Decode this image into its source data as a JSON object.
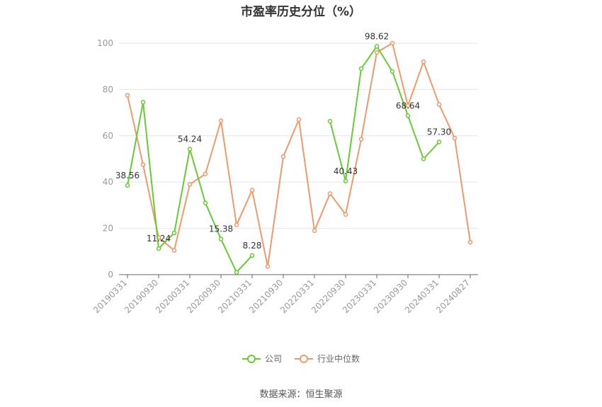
{
  "title": "市盈率历史分位（%）",
  "source": "数据来源：恒生聚源",
  "colors": {
    "company": "#66cc33",
    "industry": "#f0996b",
    "axis": "#999999",
    "grid": "#e6e6e6"
  },
  "chart_data": {
    "type": "line",
    "x": [
      "20190331",
      "20190630",
      "20190930",
      "20191231",
      "20200331",
      "20200630",
      "20200930",
      "20201231",
      "20210331",
      "20210630",
      "20210930",
      "20211231",
      "20220331",
      "20220630",
      "20220930",
      "20221231",
      "20230331",
      "20230630",
      "20230930",
      "20231231",
      "20240331",
      "20240630",
      "20240827"
    ],
    "x_tick_labels": [
      "20190331",
      "20190930",
      "20200331",
      "20200930",
      "20210331",
      "20210930",
      "20220331",
      "20220930",
      "20230331",
      "20230930",
      "20240331",
      "20240827"
    ],
    "ylim": [
      0,
      100
    ],
    "y_ticks": [
      0,
      20,
      40,
      60,
      80,
      100
    ],
    "legend_position": "bottom",
    "grid": true,
    "series": [
      {
        "name": "公司",
        "values": [
          38.56,
          74.5,
          11.24,
          18.0,
          54.24,
          31.0,
          15.38,
          1.0,
          8.28,
          null,
          null,
          null,
          null,
          66.3,
          40.43,
          89.0,
          98.62,
          87.8,
          68.64,
          50.0,
          57.3,
          null,
          null
        ],
        "labels": {
          "0": "38.56",
          "2": "11.24",
          "4": "54.24",
          "6": "15.38",
          "8": "8.28",
          "14": "40.43",
          "16": "98.62",
          "18": "68.64",
          "20": "57.30"
        }
      },
      {
        "name": "行业中位数",
        "values": [
          77.5,
          47.5,
          16.0,
          10.5,
          39.0,
          43.5,
          66.5,
          21.5,
          36.5,
          3.5,
          51.0,
          67.0,
          19.0,
          35.0,
          26.0,
          58.5,
          96.0,
          100.0,
          73.0,
          92.0,
          73.5,
          59.0,
          14.0
        ]
      }
    ]
  }
}
